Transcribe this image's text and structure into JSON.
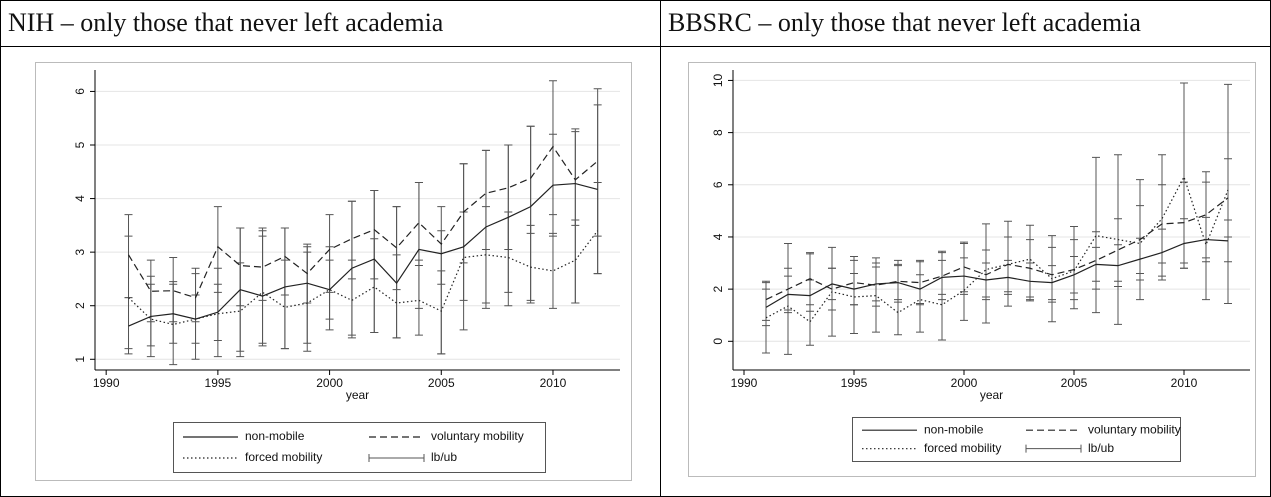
{
  "chart_data": [
    {
      "type": "line",
      "title": "NIH – only those that never left academia",
      "x_label": "year",
      "x": [
        1991,
        1992,
        1993,
        1994,
        1995,
        1996,
        1997,
        1998,
        1999,
        2000,
        2001,
        2002,
        2003,
        2004,
        2005,
        2006,
        2007,
        2008,
        2009,
        2010,
        2011,
        2012
      ],
      "xlim": [
        1989.5,
        2013
      ],
      "xticks": [
        1990,
        1995,
        2000,
        2005,
        2010
      ],
      "ylim": [
        0.8,
        6.4
      ],
      "yticks": [
        1,
        2,
        3,
        4,
        5,
        6
      ],
      "grid": true,
      "errorbar_label": "lb/ub",
      "series": [
        {
          "name": "non-mobile",
          "color": "#222222",
          "style": "solid",
          "values": [
            1.62,
            1.8,
            1.85,
            1.75,
            1.88,
            2.3,
            2.18,
            2.35,
            2.42,
            2.3,
            2.7,
            2.87,
            2.42,
            3.05,
            2.97,
            3.1,
            3.47,
            3.65,
            3.85,
            4.25,
            4.28,
            4.17
          ],
          "lb": [
            1.1,
            1.25,
            1.3,
            1.3,
            1.35,
            1.15,
            1.3,
            1.2,
            1.3,
            1.75,
            1.4,
            1.5,
            1.4,
            1.95,
            1.1,
            1.55,
            1.95,
            2.25,
            2.1,
            3.3,
            2.05,
            2.6
          ],
          "ub": [
            2.15,
            2.4,
            2.4,
            2.2,
            2.4,
            3.45,
            3.4,
            3.45,
            3.1,
            2.85,
            3.95,
            4.15,
            3.85,
            4.3,
            3.4,
            4.65,
            4.9,
            5.0,
            5.35,
            5.2,
            5.3,
            5.75
          ]
        },
        {
          "name": "voluntary mobility",
          "color": "#222222",
          "style": "dashed",
          "values": [
            2.95,
            2.27,
            2.28,
            2.15,
            3.1,
            2.75,
            2.72,
            2.92,
            2.6,
            3.05,
            3.25,
            3.42,
            3.08,
            3.55,
            3.15,
            3.75,
            4.1,
            4.2,
            4.38,
            4.97,
            4.35,
            4.7
          ],
          "lb": [
            2.15,
            1.7,
            1.7,
            1.7,
            2.25,
            2.0,
            2.1,
            2.2,
            2.05,
            2.25,
            2.5,
            2.5,
            2.3,
            2.75,
            2.4,
            2.8,
            3.05,
            3.05,
            3.35,
            3.7,
            3.5,
            3.3
          ],
          "ub": [
            3.7,
            2.85,
            2.9,
            2.7,
            3.85,
            3.45,
            3.45,
            3.45,
            3.15,
            3.7,
            3.95,
            4.15,
            3.85,
            4.3,
            3.85,
            4.65,
            4.9,
            5.0,
            5.35,
            6.2,
            5.25,
            6.05
          ]
        },
        {
          "name": "forced mobility",
          "color": "#222222",
          "style": "dotted",
          "values": [
            2.15,
            1.75,
            1.65,
            1.75,
            1.85,
            1.9,
            2.25,
            1.97,
            2.05,
            2.3,
            2.1,
            2.35,
            2.05,
            2.1,
            1.9,
            2.9,
            2.95,
            2.9,
            2.72,
            2.65,
            2.85,
            3.4
          ],
          "lb": [
            1.2,
            1.05,
            0.9,
            1.0,
            1.05,
            1.05,
            1.25,
            1.2,
            1.15,
            1.55,
            1.45,
            1.5,
            1.4,
            1.45,
            1.1,
            2.1,
            2.05,
            2.0,
            2.05,
            1.95,
            2.05,
            2.6
          ],
          "ub": [
            3.3,
            2.55,
            2.45,
            2.6,
            2.7,
            2.8,
            3.3,
            2.85,
            3.0,
            3.1,
            2.85,
            3.25,
            2.95,
            2.85,
            2.65,
            3.75,
            3.85,
            3.75,
            3.5,
            3.35,
            3.6,
            4.3
          ]
        }
      ]
    },
    {
      "type": "line",
      "title": "BBSRC – only those that never left academia",
      "x_label": "year",
      "x": [
        1991,
        1992,
        1993,
        1994,
        1995,
        1996,
        1997,
        1998,
        1999,
        2000,
        2001,
        2002,
        2003,
        2004,
        2005,
        2006,
        2007,
        2008,
        2009,
        2010,
        2011,
        2012
      ],
      "xlim": [
        1989.5,
        2013
      ],
      "xticks": [
        1990,
        1995,
        2000,
        2005,
        2010
      ],
      "ylim": [
        -1.1,
        10.4
      ],
      "yticks": [
        0,
        2,
        4,
        6,
        8,
        10
      ],
      "grid": true,
      "errorbar_label": "lb/ub",
      "series": [
        {
          "name": "non-mobile",
          "color": "#222222",
          "style": "solid",
          "values": [
            1.3,
            1.8,
            1.75,
            2.2,
            2.0,
            2.2,
            2.25,
            2.0,
            2.45,
            2.5,
            2.35,
            2.45,
            2.3,
            2.25,
            2.55,
            2.95,
            2.9,
            3.15,
            3.4,
            3.75,
            3.9,
            3.85
          ],
          "lb": [
            0.6,
            1.1,
            1.15,
            1.6,
            1.4,
            1.55,
            1.6,
            1.45,
            1.8,
            1.8,
            1.7,
            1.8,
            1.6,
            1.6,
            1.85,
            2.3,
            2.1,
            2.35,
            2.5,
            2.8,
            3.05,
            3.05
          ],
          "ub": [
            2.0,
            2.5,
            2.35,
            2.8,
            2.6,
            2.85,
            2.9,
            2.55,
            3.1,
            3.2,
            3.0,
            3.1,
            3.0,
            2.9,
            3.25,
            3.6,
            3.7,
            3.95,
            4.3,
            4.7,
            4.75,
            4.65
          ]
        },
        {
          "name": "voluntary mobility",
          "color": "#222222",
          "style": "dashed",
          "values": [
            1.6,
            2.0,
            2.4,
            2.0,
            2.25,
            2.15,
            2.3,
            2.25,
            2.5,
            2.85,
            2.55,
            2.95,
            2.8,
            2.55,
            2.75,
            3.1,
            3.5,
            3.9,
            4.5,
            4.55,
            4.85,
            5.5
          ],
          "lb": [
            0.8,
            1.2,
            1.4,
            1.2,
            1.4,
            1.35,
            1.5,
            1.4,
            1.6,
            1.9,
            1.6,
            1.9,
            1.7,
            1.5,
            1.6,
            2.0,
            2.3,
            2.6,
            3.0,
            3.0,
            3.2,
            4.0
          ],
          "ub": [
            2.3,
            2.8,
            3.4,
            2.8,
            3.1,
            3.0,
            3.1,
            3.1,
            3.4,
            3.8,
            3.5,
            4.0,
            3.9,
            3.6,
            3.9,
            4.2,
            4.7,
            5.2,
            6.0,
            6.1,
            6.5,
            7.0
          ]
        },
        {
          "name": "forced mobility",
          "color": "#222222",
          "style": "dotted",
          "values": [
            0.9,
            1.35,
            0.75,
            1.9,
            1.7,
            1.75,
            1.1,
            1.6,
            1.4,
            1.95,
            2.75,
            2.95,
            3.15,
            2.4,
            2.7,
            4.05,
            3.9,
            3.75,
            4.7,
            6.3,
            3.7,
            5.8
          ],
          "lb": [
            -0.45,
            -0.5,
            -0.15,
            0.2,
            0.3,
            0.35,
            0.25,
            0.35,
            0.05,
            0.8,
            0.7,
            1.35,
            1.55,
            0.75,
            1.25,
            1.1,
            0.65,
            1.6,
            2.35,
            2.8,
            1.6,
            1.45
          ],
          "ub": [
            2.25,
            3.75,
            3.35,
            3.6,
            3.25,
            3.2,
            2.95,
            3.05,
            3.45,
            3.75,
            4.5,
            4.6,
            4.45,
            4.05,
            4.4,
            7.05,
            7.15,
            6.2,
            7.15,
            9.9,
            6.1,
            9.85
          ]
        }
      ]
    }
  ]
}
